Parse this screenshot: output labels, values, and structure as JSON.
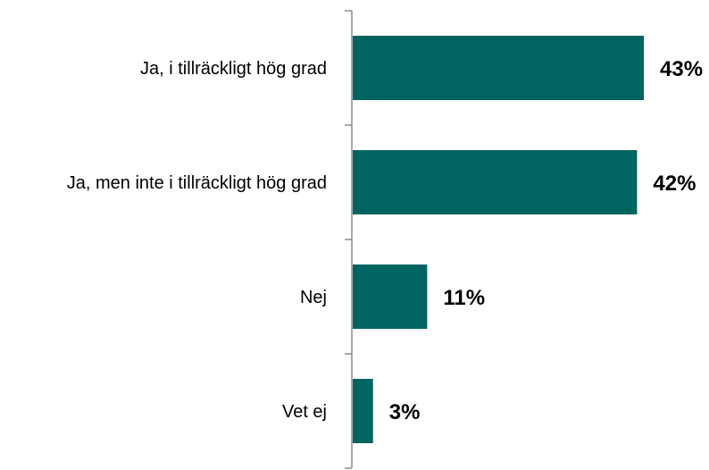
{
  "chart_data": {
    "type": "bar",
    "orientation": "horizontal",
    "categories": [
      "Ja, i tillräckligt hög grad",
      "Ja, men inte i tillräckligt hög grad",
      "Nej",
      "Vet ej"
    ],
    "values": [
      43,
      42,
      11,
      3
    ],
    "value_labels": [
      "43%",
      "42%",
      "11%",
      "3%"
    ],
    "title": "",
    "xlabel": "",
    "ylabel": "",
    "xlim": [
      0,
      43
    ],
    "grid": false,
    "legend": "none",
    "bar_color": "#006460"
  }
}
